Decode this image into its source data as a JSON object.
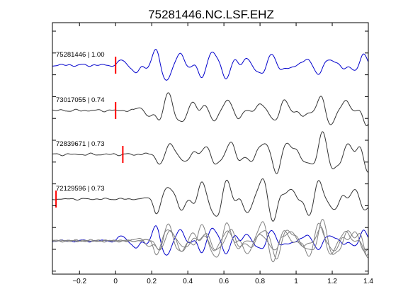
{
  "chart_data": {
    "type": "line",
    "title": "75281446.NC.LSF.EHZ",
    "xlabel": "",
    "ylabel": "",
    "xlim": [
      -0.35,
      1.4
    ],
    "x_ticks": [
      -0.2,
      0,
      0.2,
      0.4,
      0.6,
      0.8,
      1,
      1.2,
      1.4
    ],
    "x_tick_labels": [
      "−0.2",
      "0",
      "0.2",
      "0.4",
      "0.6",
      "0.8",
      "1",
      "1.2",
      "1.4"
    ],
    "grid": false,
    "colors": {
      "reference": "#0000cc",
      "trace": "#333333",
      "overlay": "#808080",
      "pick": "#ff0000"
    },
    "traces": [
      {
        "label": "75281446 | 1.00",
        "pick_time": 0.0,
        "color": "#0000cc",
        "onset": 0.0
      },
      {
        "label": "73017055 | 0.74",
        "pick_time": 0.0,
        "color": "#333333",
        "onset": 0.1
      },
      {
        "label": "72839671 | 0.73",
        "pick_time": 0.04,
        "color": "#333333",
        "onset": 0.14
      },
      {
        "label": "72129596 | 0.73",
        "pick_time": -0.33,
        "color": "#333333",
        "onset": 0.15
      }
    ]
  }
}
